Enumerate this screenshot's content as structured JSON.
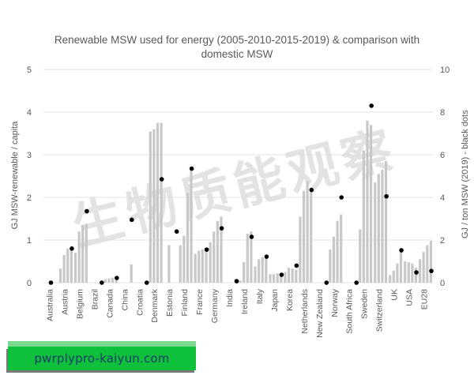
{
  "chart_data": {
    "type": "bar",
    "title": "Renewable MSW used for energy (2005-2010-2015-2019) & comparison with domestic MSW",
    "title_lines": [
      "Renewable MSW used for energy (2005-2010-2015-2019) & comparison with",
      "domestic MSW"
    ],
    "xlabel": "",
    "ylabel": "GJ MSW-renewable / capita",
    "y2label": "GJ / ton MSW (2019) - black dots",
    "ylim": [
      0,
      5
    ],
    "y2lim": [
      0,
      10
    ],
    "yticks": [
      0,
      1,
      2,
      3,
      4,
      5
    ],
    "y2ticks": [
      0,
      2,
      4,
      6,
      8,
      10
    ],
    "grid": true,
    "legend": null,
    "categories": [
      "Australia",
      "Austria",
      "Belgium",
      "Brazil",
      "Canada",
      "China",
      "Croatia",
      "Denmark",
      "Estonia",
      "Finland",
      "France",
      "Germany",
      "India",
      "Ireland",
      "Italy",
      "Japan",
      "Korea",
      "Netherlands",
      "New Zealand",
      "Norway",
      "South Africa",
      "Sweden",
      "Switzerland",
      "UK",
      "USA",
      "EU28"
    ],
    "series": [
      {
        "name": "2005",
        "axis": "left",
        "type": "bar",
        "values": [
          0,
          0.33,
          0.7,
          0,
          0.08,
          0,
          0,
          3.55,
          0,
          0.88,
          0.68,
          0.95,
          0,
          0.05,
          0.38,
          0.2,
          0.25,
          1.55,
          0,
          0.78,
          0,
          1.25,
          2.35,
          0.18,
          0.5,
          0.55
        ]
      },
      {
        "name": "2010",
        "axis": "left",
        "type": "bar",
        "values": [
          0,
          0.65,
          1.2,
          0,
          0.1,
          0,
          0,
          3.6,
          0.88,
          1.1,
          0.75,
          1.2,
          0,
          0.48,
          0.55,
          0.2,
          0.35,
          2.15,
          0,
          1.08,
          0,
          3.1,
          2.55,
          0.28,
          0.48,
          0.72
        ]
      },
      {
        "name": "2015",
        "axis": "left",
        "type": "bar",
        "values": [
          0,
          0.8,
          1.35,
          0,
          0.12,
          0,
          0,
          3.75,
          0,
          2.1,
          0.78,
          1.45,
          0,
          1.15,
          0.6,
          0.22,
          0.33,
          2.38,
          0,
          1.45,
          0,
          3.8,
          2.65,
          0.45,
          0.45,
          0.88
        ]
      },
      {
        "name": "2019",
        "axis": "left",
        "type": "bar",
        "values": [
          0,
          0.85,
          1.38,
          0,
          0.15,
          0.43,
          0,
          3.75,
          0,
          2.7,
          0.78,
          1.55,
          0,
          1.2,
          0.62,
          0.2,
          0.3,
          2.2,
          0,
          1.6,
          0,
          3.7,
          2.85,
          0.8,
          0.35,
          0.98
        ]
      },
      {
        "name": "GJ / ton MSW (2019)",
        "axis": "right",
        "type": "scatter",
        "values": [
          0,
          1.6,
          3.35,
          0,
          0.22,
          2.95,
          0,
          4.85,
          2.4,
          5.35,
          1.55,
          2.55,
          0.07,
          2.15,
          1.22,
          0.37,
          0.8,
          4.35,
          0,
          4.0,
          0,
          8.3,
          4.05,
          1.52,
          0.48,
          0.55
        ]
      }
    ],
    "colors": {
      "bars": "#c8c8c8",
      "dots": "#000000",
      "grid": "#e3e3e3",
      "text": "#595959"
    }
  },
  "watermark": {
    "text": "生物质能观察",
    "color": "#d9d9d9"
  },
  "banner": {
    "text": "pwrplypro-kaiyun.com",
    "color": "#0fc03a"
  }
}
